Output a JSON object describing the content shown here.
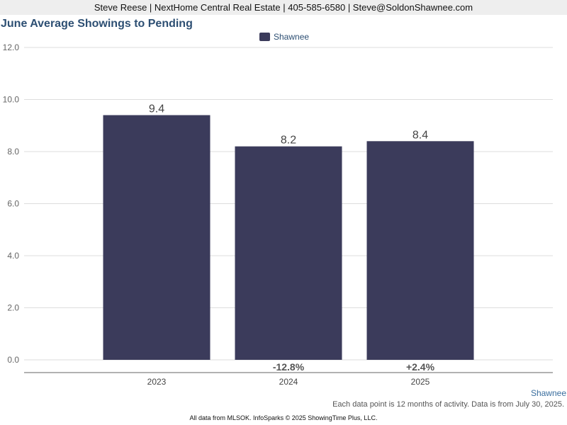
{
  "header": {
    "contact": "Steve Reese | NextHome Central Real Estate | 405-585-6580 | Steve@SoldonShawnee.com"
  },
  "legend": {
    "label": "Shawnee"
  },
  "source_label": "Shawnee",
  "footnote": "Each data point is 12 months of activity. Data is from July 30, 2025.",
  "credit": "All data from MLSOK. InfoSparks © 2025 ShowingTime Plus, LLC.",
  "colors": {
    "bar": "#3b3b5b",
    "title": "#2d4f73",
    "grid": "#dddddd",
    "axis": "#666666"
  },
  "chart_data": {
    "type": "bar",
    "title": "June Average Showings to Pending",
    "categories": [
      "2023",
      "2024",
      "2025"
    ],
    "series": [
      {
        "name": "Shawnee",
        "values": [
          9.4,
          8.2,
          8.4
        ]
      }
    ],
    "value_labels": [
      "9.4",
      "8.2",
      "8.4"
    ],
    "change_labels": [
      "",
      "-12.8%",
      "+2.4%"
    ],
    "yticks": [
      "0.0",
      "2.0",
      "4.0",
      "6.0",
      "8.0",
      "10.0",
      "12.0"
    ],
    "ylim": [
      0,
      12
    ],
    "xlabel": "",
    "ylabel": "",
    "grid": true,
    "legend_position": "top-center"
  }
}
